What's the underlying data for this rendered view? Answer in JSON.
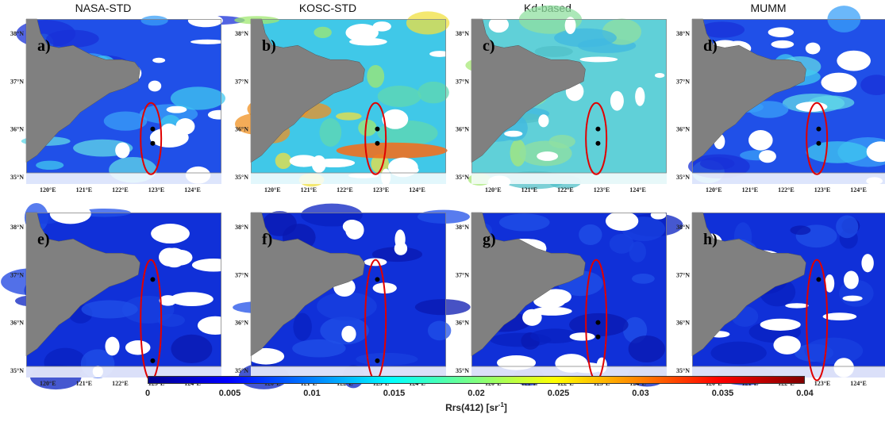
{
  "column_titles": [
    "NASA-STD",
    "KOSC-STD",
    "Kd-based",
    "MUMM"
  ],
  "panels": [
    {
      "label": "a)",
      "row": 0,
      "col": 0,
      "style": "mid",
      "points": [
        36.0,
        35.7
      ]
    },
    {
      "label": "b)",
      "row": 0,
      "col": 1,
      "style": "high",
      "points": [
        36.0,
        35.7
      ]
    },
    {
      "label": "c)",
      "row": 0,
      "col": 2,
      "style": "kd",
      "points": [
        36.0,
        35.7
      ]
    },
    {
      "label": "d)",
      "row": 0,
      "col": 3,
      "style": "mid",
      "points": [
        36.0,
        35.7
      ]
    },
    {
      "label": "e)",
      "row": 1,
      "col": 0,
      "style": "low",
      "points": [
        36.9,
        35.2
      ]
    },
    {
      "label": "f)",
      "row": 1,
      "col": 1,
      "style": "low",
      "points": [
        36.9,
        35.2
      ]
    },
    {
      "label": "g)",
      "row": 1,
      "col": 2,
      "style": "low",
      "points": [
        36.0,
        35.7
      ]
    },
    {
      "label": "h)",
      "row": 1,
      "col": 3,
      "style": "low",
      "points": [
        36.9
      ]
    }
  ],
  "lat_ticks": [
    "38°N",
    "37°N",
    "36°N",
    "35°N"
  ],
  "lon_ticks": [
    "120°E",
    "121°E",
    "122°E",
    "123°E",
    "124°E"
  ],
  "colorbar": {
    "ticks": [
      "0",
      "0.005",
      "0.01",
      "0.015",
      "0.02",
      "0.025",
      "0.03",
      "0.035",
      "0.04"
    ],
    "label": "Rrs(412) [sr",
    "label_sup": "-1",
    "label_end": "]"
  },
  "colors": {
    "land": "#808080",
    "ellipse": "#e00000",
    "point": "#000000"
  }
}
